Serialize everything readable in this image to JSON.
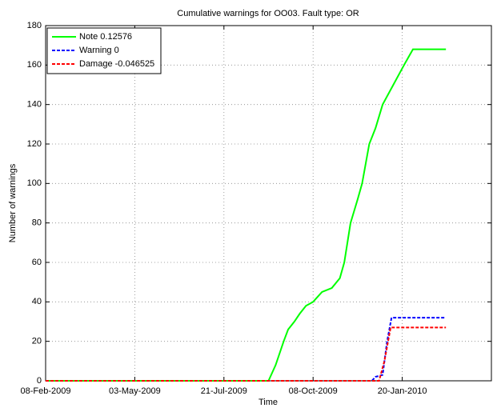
{
  "chart_data": {
    "type": "line",
    "title": "Cumulative warnings for OO03. Fault type: OR",
    "xlabel": "Time",
    "ylabel": "Number of warnings",
    "xlim": [
      0,
      500
    ],
    "ylim": [
      0,
      180
    ],
    "xticks": [
      {
        "value": 0,
        "label": "08-Feb-2009"
      },
      {
        "value": 100,
        "label": "03-May-2009"
      },
      {
        "value": 200,
        "label": "21-Jul-2009"
      },
      {
        "value": 300,
        "label": "08-Oct-2009"
      },
      {
        "value": 400,
        "label": "20-Jan-2010"
      }
    ],
    "yticks": [
      0,
      20,
      40,
      60,
      80,
      100,
      120,
      140,
      160,
      180
    ],
    "grid": true,
    "legend": "upper left",
    "series": [
      {
        "name": "Note 0.12576",
        "color": "#00ff00",
        "dash": "solid",
        "x": [
          0,
          250,
          258,
          267,
          272,
          279,
          285,
          292,
          300,
          310,
          321,
          330,
          335,
          342,
          350,
          355,
          363,
          370,
          378,
          390,
          402,
          412,
          449
        ],
        "values": [
          0,
          0,
          8,
          20,
          26,
          30,
          34,
          38,
          40,
          45,
          47,
          52,
          60,
          80,
          92,
          100,
          120,
          128,
          140,
          150,
          160,
          168,
          168
        ]
      },
      {
        "name": "Warning 0",
        "color": "#0000ff",
        "dash": "dashed",
        "x": [
          0,
          366,
          370,
          378,
          383,
          388,
          449
        ],
        "values": [
          0,
          0,
          2,
          3,
          20,
          32,
          32
        ]
      },
      {
        "name": "Damage -0.046525",
        "color": "#ff0000",
        "dash": "dashed",
        "x": [
          0,
          374,
          380,
          387,
          449
        ],
        "values": [
          0,
          0,
          10,
          27,
          27
        ]
      }
    ]
  }
}
